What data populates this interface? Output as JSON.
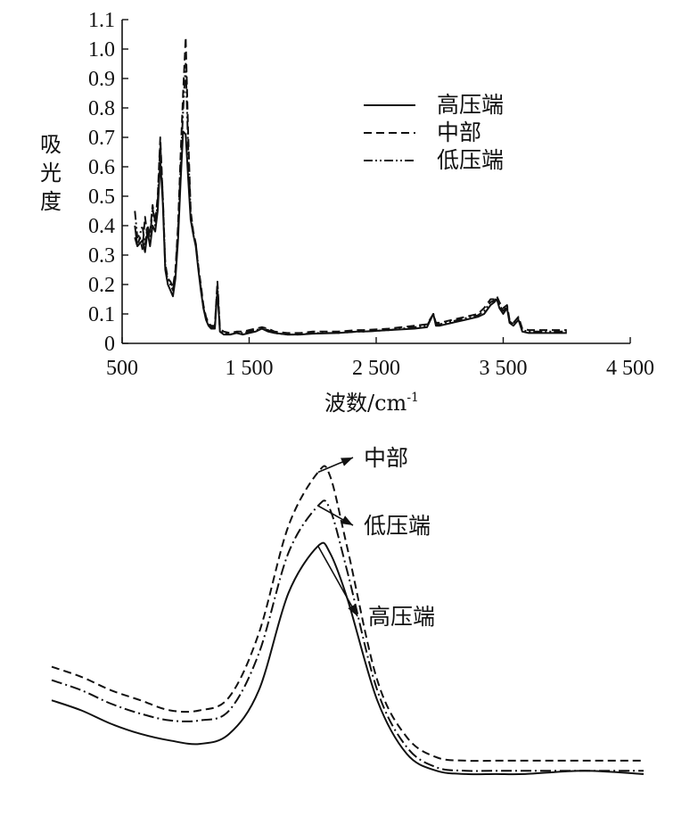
{
  "chart_data": [
    {
      "type": "line",
      "xlabel": "波数/cm",
      "xlabel_sup": "-1",
      "ylabel": "吸光度",
      "xlim": [
        500,
        4500
      ],
      "ylim": [
        0,
        1.1
      ],
      "xticks": [
        500,
        1500,
        2500,
        3500,
        4500
      ],
      "xtick_labels": [
        "500",
        "1 500",
        "2 500",
        "3 500",
        "4 500"
      ],
      "yticks": [
        0,
        0.1,
        0.2,
        0.3,
        0.4,
        0.5,
        0.6,
        0.7,
        0.8,
        0.9,
        1.0,
        1.1
      ],
      "ytick_labels": [
        "0",
        "0.1",
        "0.2",
        "0.3",
        "0.4",
        "0.5",
        "0.6",
        "0.7",
        "0.8",
        "0.9",
        "1.0",
        "1.1"
      ],
      "grid": false,
      "legend_position": "upper-right",
      "series": [
        {
          "name": "高压端",
          "style": "solid",
          "x": [
            600,
            620,
            640,
            660,
            680,
            700,
            720,
            740,
            760,
            780,
            800,
            820,
            840,
            860,
            880,
            900,
            920,
            940,
            960,
            980,
            1000,
            1020,
            1040,
            1060,
            1080,
            1100,
            1120,
            1140,
            1160,
            1180,
            1200,
            1230,
            1250,
            1270,
            1300,
            1350,
            1400,
            1450,
            1500,
            1550,
            1600,
            1650,
            1700,
            1800,
            1900,
            2000,
            2200,
            2350,
            2400,
            2600,
            2800,
            2900,
            2950,
            2970,
            3000,
            3100,
            3200,
            3300,
            3350,
            3400,
            3430,
            3450,
            3470,
            3500,
            3530,
            3550,
            3580,
            3620,
            3650,
            3700,
            3800,
            3900,
            4000
          ],
          "y": [
            0.4,
            0.33,
            0.34,
            0.35,
            0.31,
            0.38,
            0.33,
            0.4,
            0.38,
            0.45,
            0.62,
            0.48,
            0.25,
            0.2,
            0.18,
            0.16,
            0.22,
            0.35,
            0.55,
            0.72,
            0.71,
            0.56,
            0.42,
            0.37,
            0.33,
            0.25,
            0.18,
            0.12,
            0.08,
            0.06,
            0.05,
            0.05,
            0.18,
            0.04,
            0.03,
            0.03,
            0.035,
            0.03,
            0.035,
            0.04,
            0.05,
            0.04,
            0.035,
            0.03,
            0.03,
            0.033,
            0.035,
            0.04,
            0.04,
            0.045,
            0.05,
            0.055,
            0.1,
            0.06,
            0.06,
            0.07,
            0.08,
            0.09,
            0.1,
            0.13,
            0.14,
            0.15,
            0.12,
            0.1,
            0.12,
            0.07,
            0.06,
            0.08,
            0.04,
            0.035,
            0.035,
            0.035,
            0.035
          ]
        },
        {
          "name": "中部",
          "style": "dashed",
          "x": [
            600,
            620,
            640,
            660,
            680,
            700,
            720,
            740,
            760,
            780,
            800,
            820,
            840,
            860,
            880,
            900,
            920,
            940,
            960,
            980,
            1000,
            1020,
            1040,
            1060,
            1080,
            1100,
            1120,
            1140,
            1160,
            1180,
            1200,
            1230,
            1250,
            1270,
            1300,
            1350,
            1400,
            1450,
            1500,
            1550,
            1600,
            1650,
            1700,
            1800,
            1900,
            2000,
            2200,
            2350,
            2400,
            2600,
            2800,
            2900,
            2950,
            2970,
            3000,
            3100,
            3200,
            3300,
            3350,
            3400,
            3430,
            3450,
            3470,
            3500,
            3530,
            3550,
            3580,
            3620,
            3650,
            3700,
            3800,
            3900,
            4000
          ],
          "y": [
            0.36,
            0.33,
            0.36,
            0.32,
            0.43,
            0.36,
            0.38,
            0.47,
            0.41,
            0.5,
            0.7,
            0.5,
            0.27,
            0.22,
            0.21,
            0.19,
            0.25,
            0.4,
            0.64,
            0.85,
            1.04,
            0.71,
            0.45,
            0.38,
            0.34,
            0.26,
            0.2,
            0.13,
            0.09,
            0.07,
            0.06,
            0.06,
            0.21,
            0.05,
            0.04,
            0.035,
            0.04,
            0.04,
            0.045,
            0.05,
            0.055,
            0.05,
            0.04,
            0.035,
            0.035,
            0.04,
            0.04,
            0.045,
            0.045,
            0.05,
            0.06,
            0.065,
            0.1,
            0.07,
            0.07,
            0.08,
            0.09,
            0.1,
            0.12,
            0.15,
            0.15,
            0.16,
            0.14,
            0.12,
            0.13,
            0.08,
            0.07,
            0.09,
            0.05,
            0.045,
            0.045,
            0.045,
            0.045
          ]
        },
        {
          "name": "低压端",
          "style": "dash-dot-dot",
          "x": [
            600,
            620,
            640,
            660,
            680,
            700,
            720,
            740,
            760,
            780,
            800,
            820,
            840,
            860,
            880,
            900,
            920,
            940,
            960,
            980,
            1000,
            1020,
            1040,
            1060,
            1080,
            1100,
            1120,
            1140,
            1160,
            1180,
            1200,
            1230,
            1250,
            1270,
            1300,
            1350,
            1400,
            1450,
            1500,
            1550,
            1600,
            1650,
            1700,
            1800,
            1900,
            2000,
            2200,
            2350,
            2400,
            2600,
            2800,
            2900,
            2950,
            2970,
            3000,
            3100,
            3200,
            3300,
            3350,
            3400,
            3430,
            3450,
            3470,
            3500,
            3530,
            3550,
            3580,
            3620,
            3650,
            3700,
            3800,
            3900,
            4000
          ],
          "y": [
            0.45,
            0.36,
            0.37,
            0.4,
            0.33,
            0.4,
            0.36,
            0.46,
            0.4,
            0.48,
            0.68,
            0.5,
            0.26,
            0.21,
            0.2,
            0.18,
            0.24,
            0.38,
            0.6,
            0.79,
            0.95,
            0.66,
            0.44,
            0.37,
            0.34,
            0.26,
            0.19,
            0.12,
            0.085,
            0.065,
            0.055,
            0.055,
            0.2,
            0.045,
            0.035,
            0.03,
            0.035,
            0.035,
            0.04,
            0.045,
            0.05,
            0.045,
            0.035,
            0.03,
            0.03,
            0.035,
            0.035,
            0.04,
            0.04,
            0.045,
            0.055,
            0.06,
            0.1,
            0.065,
            0.065,
            0.075,
            0.085,
            0.095,
            0.11,
            0.14,
            0.145,
            0.155,
            0.13,
            0.11,
            0.125,
            0.075,
            0.065,
            0.085,
            0.045,
            0.04,
            0.04,
            0.04,
            0.04
          ]
        }
      ]
    },
    {
      "type": "line",
      "title": "",
      "xlabel": "",
      "ylabel": "",
      "xlim": [
        0,
        100
      ],
      "ylim": [
        0,
        100
      ],
      "axes_visible": false,
      "annotations": [
        "中部",
        "低压端",
        "高压端"
      ],
      "series": [
        {
          "name": "高压端",
          "style": "solid",
          "x": [
            0,
            5,
            10,
            15,
            20,
            25,
            30,
            35,
            40,
            45,
            47,
            50,
            55,
            60,
            65,
            70,
            75,
            80,
            90,
            100
          ],
          "y": [
            30,
            27,
            23,
            20,
            18,
            17,
            20,
            33,
            62,
            76,
            74,
            60,
            30,
            14,
            9,
            8,
            8,
            8,
            9,
            8
          ]
        },
        {
          "name": "中部",
          "style": "dashed",
          "x": [
            0,
            5,
            10,
            15,
            20,
            25,
            30,
            35,
            40,
            45,
            47,
            50,
            55,
            60,
            65,
            70,
            75,
            80,
            90,
            100
          ],
          "y": [
            40,
            37,
            33,
            30,
            27,
            27,
            31,
            50,
            82,
            98,
            97,
            75,
            36,
            19,
            13,
            12,
            12,
            12,
            12,
            12
          ]
        },
        {
          "name": "低压端",
          "style": "dash-dot",
          "x": [
            0,
            5,
            10,
            15,
            20,
            25,
            30,
            35,
            40,
            45,
            47,
            50,
            55,
            60,
            65,
            70,
            75,
            80,
            90,
            100
          ],
          "y": [
            36,
            33,
            29,
            26,
            24,
            24,
            27,
            44,
            74,
            88,
            87,
            68,
            33,
            16,
            10,
            9,
            9,
            9,
            9,
            9
          ]
        }
      ]
    }
  ]
}
